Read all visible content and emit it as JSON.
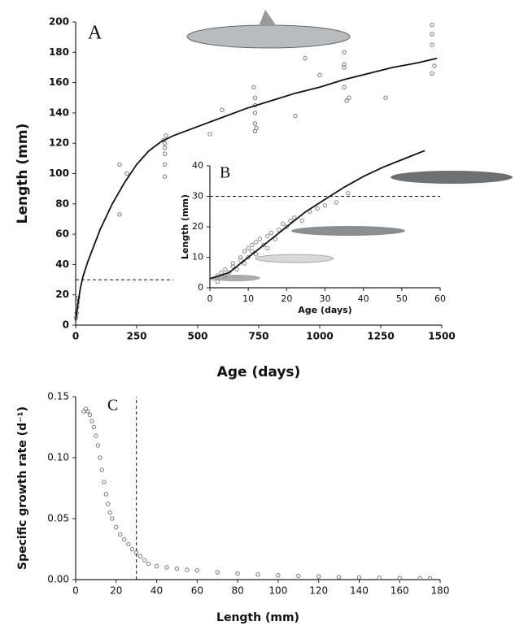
{
  "chart_data": [
    {
      "type": "scatter",
      "annotation": "A",
      "xlabel": "Age (days)",
      "ylabel": "Length (mm)",
      "xlim": [
        0,
        1500
      ],
      "ylim": [
        0,
        200
      ],
      "xticks": [
        0,
        250,
        500,
        750,
        1000,
        1250,
        1500
      ],
      "yticks": [
        0,
        20,
        40,
        60,
        80,
        100,
        120,
        140,
        160,
        180,
        200
      ],
      "series": [
        {
          "style": "markers",
          "color": "#777777",
          "x": [
            2,
            4,
            6,
            8,
            10,
            180,
            180,
            210,
            360,
            365,
            365,
            365,
            365,
            365,
            370,
            550,
            600,
            730,
            735,
            735,
            735,
            735,
            735,
            740,
            900,
            940,
            1000,
            1100,
            1100,
            1100,
            1100,
            1110,
            1120,
            1270,
            1460,
            1460,
            1460,
            1470,
            1460
          ],
          "values": [
            5,
            8,
            12,
            15,
            18,
            106,
            73,
            100,
            122,
            120,
            117,
            113,
            106,
            98,
            125,
            126,
            142,
            157,
            150,
            145,
            140,
            133,
            128,
            130,
            138,
            176,
            165,
            180,
            172,
            170,
            157,
            148,
            150,
            150,
            198,
            192,
            185,
            171,
            166
          ]
        },
        {
          "style": "line",
          "color": "#111111",
          "x": [
            0,
            10,
            20,
            30,
            50,
            100,
            150,
            200,
            250,
            300,
            350,
            400,
            500,
            600,
            700,
            800,
            900,
            1000,
            1100,
            1200,
            1300,
            1400,
            1480
          ],
          "values": [
            3,
            15,
            25,
            32,
            42,
            63,
            80,
            94,
            106,
            115,
            121,
            125,
            131,
            137,
            143,
            148,
            153,
            157,
            162,
            166,
            170,
            173,
            176
          ]
        },
        {
          "style": "dashed",
          "color": "#111111",
          "x": [
            0,
            400
          ],
          "values": [
            30,
            30
          ]
        }
      ]
    },
    {
      "type": "scatter",
      "annotation": "B",
      "xlabel": "Age (days)",
      "ylabel": "Length (mm)",
      "xlim": [
        0,
        60
      ],
      "ylim": [
        0,
        40
      ],
      "xticks": [
        0,
        10,
        20,
        30,
        40,
        50,
        60
      ],
      "yticks": [
        0,
        10,
        20,
        30,
        40
      ],
      "series": [
        {
          "style": "markers",
          "color": "#888888",
          "x": [
            1,
            2,
            2,
            3,
            4,
            4,
            5,
            6,
            6,
            7,
            8,
            8,
            9,
            9,
            10,
            10,
            11,
            11,
            12,
            12,
            13,
            14,
            15,
            15,
            16,
            17,
            18,
            19,
            20,
            21,
            22,
            24,
            26,
            28,
            30,
            33,
            36
          ],
          "values": [
            3,
            4,
            2,
            5,
            4,
            6,
            5,
            7,
            8,
            6,
            9,
            10,
            8,
            12,
            10,
            13,
            12,
            14,
            11,
            15,
            16,
            14,
            17,
            13,
            18,
            16,
            19,
            21,
            20,
            22,
            23,
            22,
            25,
            26,
            27,
            28,
            31
          ]
        },
        {
          "style": "line",
          "color": "#111111",
          "x": [
            0,
            5,
            10,
            15,
            20,
            25,
            30,
            35,
            40,
            45,
            50,
            56
          ],
          "values": [
            3,
            5,
            10,
            15,
            20,
            25,
            29,
            33,
            36.5,
            39.5,
            42,
            45
          ]
        },
        {
          "style": "dashed",
          "color": "#111111",
          "x": [
            0,
            60
          ],
          "values": [
            30,
            30
          ]
        }
      ]
    },
    {
      "type": "scatter",
      "annotation": "C",
      "xlabel": "Length (mm)",
      "ylabel": "Specific growth rate (d⁻¹)",
      "xlim": [
        0,
        180
      ],
      "ylim": [
        0,
        0.15
      ],
      "xticks": [
        0,
        20,
        40,
        60,
        80,
        100,
        120,
        140,
        160,
        180
      ],
      "yticks": [
        {
          "value": 0,
          "label": "0.00"
        },
        0.05,
        {
          "value": 0.1,
          "label": "0.10"
        },
        0.15
      ],
      "series": [
        {
          "style": "markers",
          "color": "#777777",
          "x": [
            4,
            5,
            6,
            7,
            8,
            9,
            10,
            11,
            12,
            13,
            14,
            15,
            16,
            17,
            18,
            20,
            22,
            24,
            26,
            28,
            30,
            32,
            34,
            36,
            40,
            45,
            50,
            55,
            60,
            70,
            80,
            90,
            100,
            110,
            120,
            130,
            140,
            150,
            160,
            170,
            175
          ],
          "values": [
            0.138,
            0.14,
            0.138,
            0.135,
            0.13,
            0.125,
            0.118,
            0.11,
            0.1,
            0.09,
            0.08,
            0.07,
            0.062,
            0.055,
            0.05,
            0.043,
            0.037,
            0.033,
            0.029,
            0.025,
            0.022,
            0.019,
            0.016,
            0.013,
            0.011,
            0.01,
            0.009,
            0.008,
            0.0075,
            0.006,
            0.005,
            0.0042,
            0.0035,
            0.003,
            0.0025,
            0.002,
            0.0018,
            0.0015,
            0.0013,
            0.0011,
            0.001
          ]
        },
        {
          "style": "dashed",
          "color": "#111111",
          "x": [
            30,
            30
          ],
          "values": [
            0,
            0.15
          ]
        }
      ]
    }
  ]
}
